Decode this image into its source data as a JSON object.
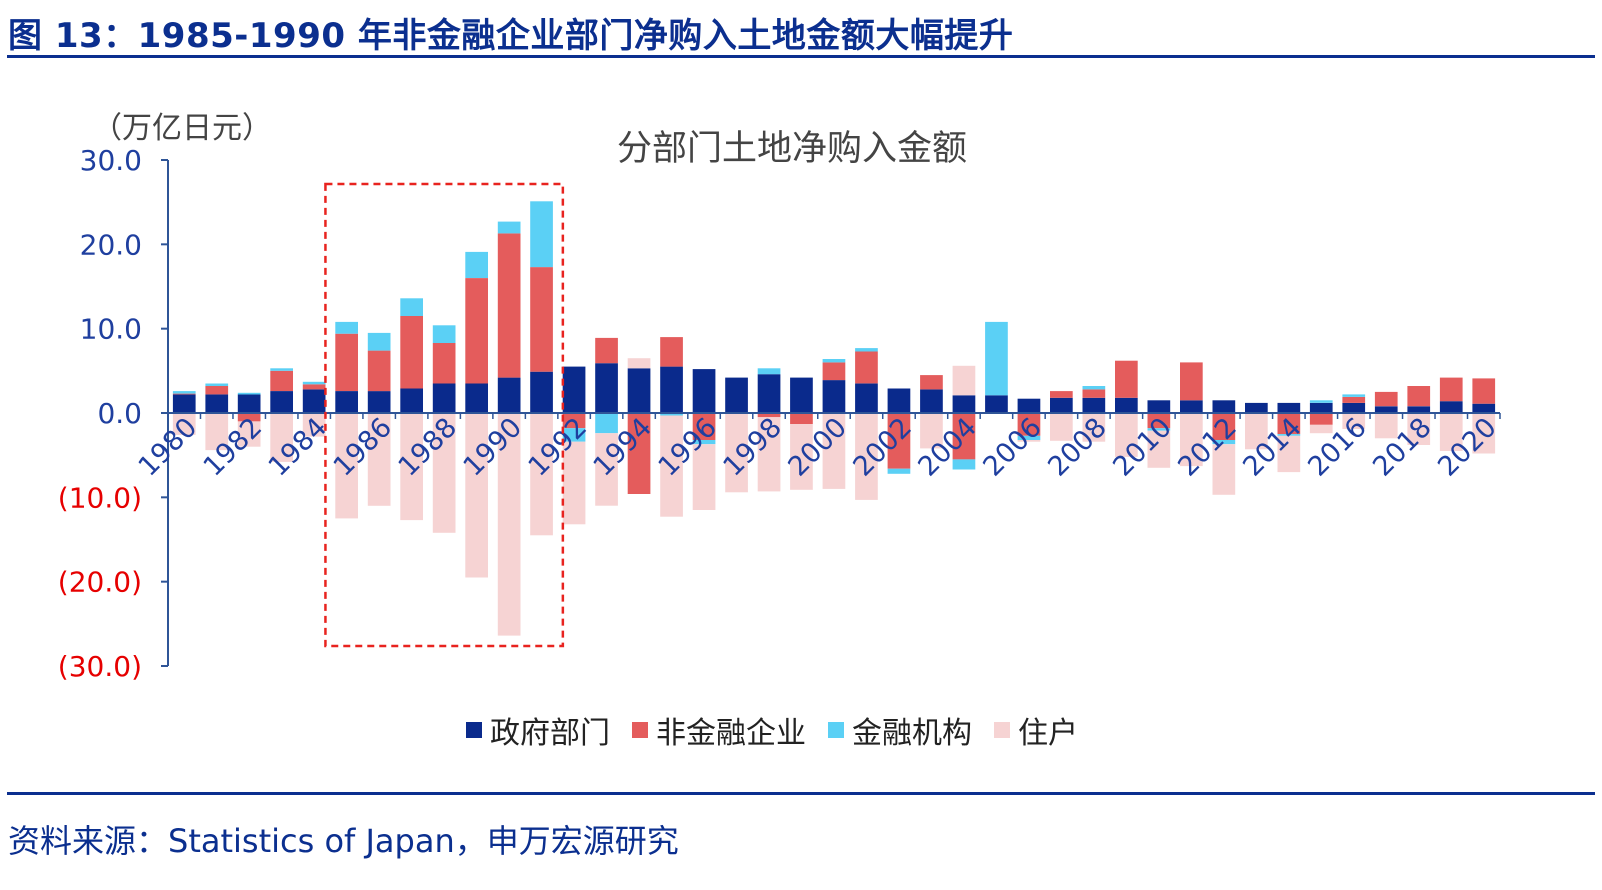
{
  "figure": {
    "title": "图 13：1985-1990 年非金融企业部门净购入土地金额大幅提升",
    "source": "资料来源：Statistics of Japan，申万宏源研究"
  },
  "colors": {
    "government": "#0a2a8c",
    "nonfinancial": "#e45c5c",
    "financial": "#5bd0f5",
    "household": "#f6d3d3",
    "axis": "#2f5597",
    "negative_tick": "#e60000",
    "positive_tick": "#1f3f9f",
    "highlight_box": "#e8231f"
  },
  "chart_data": {
    "type": "bar",
    "stacked": true,
    "title": "分部门土地净购入金额",
    "ylabel": "（万亿日元）",
    "xlabel": "",
    "ylim": [
      -30,
      30
    ],
    "yticks": [
      30,
      20,
      10,
      0,
      -10,
      -20,
      -30
    ],
    "ytick_labels": [
      "30.0",
      "20.0",
      "10.0",
      "0.0",
      "(10.0)",
      "(20.0)",
      "(30.0)"
    ],
    "grid": false,
    "legend_position": "bottom",
    "highlight_range": [
      "1985",
      "1992"
    ],
    "categories": [
      "1980",
      "1981",
      "1982",
      "1983",
      "1984",
      "1985",
      "1986",
      "1987",
      "1988",
      "1989",
      "1990",
      "1991",
      "1992",
      "1993",
      "1994",
      "1995",
      "1996",
      "1997",
      "1998",
      "1999",
      "2000",
      "2001",
      "2002",
      "2003",
      "2004",
      "2005",
      "2006",
      "2007",
      "2008",
      "2009",
      "2010",
      "2011",
      "2012",
      "2013",
      "2014",
      "2015",
      "2016",
      "2017",
      "2018",
      "2019",
      "2020"
    ],
    "xtick_labels": [
      "1980",
      "1982",
      "1984",
      "1986",
      "1988",
      "1990",
      "1992",
      "1994",
      "1996",
      "1998",
      "2000",
      "2002",
      "2004",
      "2006",
      "2008",
      "2010",
      "2012",
      "2014",
      "2016",
      "2018",
      "2020"
    ],
    "series": [
      {
        "name": "政府部门",
        "key": "government",
        "values": [
          2.2,
          2.2,
          2.2,
          2.6,
          2.8,
          2.6,
          2.6,
          2.9,
          3.5,
          3.5,
          4.2,
          4.9,
          5.5,
          5.9,
          5.3,
          5.5,
          5.2,
          4.2,
          4.6,
          4.2,
          3.9,
          3.5,
          2.9,
          2.8,
          2.1,
          2.1,
          1.7,
          1.8,
          1.8,
          1.8,
          1.5,
          1.5,
          1.5,
          1.2,
          1.2,
          1.2,
          1.2,
          0.8,
          0.8,
          1.4,
          1.1
        ]
      },
      {
        "name": "非金融企业",
        "key": "nonfinancial",
        "values": [
          0.1,
          1.0,
          -1.0,
          2.4,
          0.6,
          6.8,
          4.8,
          8.6,
          4.8,
          12.5,
          17.1,
          12.4,
          -1.8,
          3.0,
          -9.6,
          3.5,
          -3.2,
          0.0,
          -0.5,
          -1.3,
          2.1,
          3.8,
          -6.6,
          1.7,
          -5.5,
          0.0,
          -2.7,
          0.8,
          1.0,
          4.4,
          -1.8,
          4.5,
          -3.2,
          0.0,
          -2.5,
          -1.4,
          0.7,
          1.7,
          2.4,
          2.8,
          3.0
        ]
      },
      {
        "name": "金融机构",
        "key": "financial",
        "values": [
          0.3,
          0.3,
          0.2,
          0.3,
          0.3,
          1.4,
          2.1,
          2.1,
          2.1,
          3.1,
          1.4,
          7.8,
          -1.6,
          -2.4,
          0.0,
          -0.3,
          -0.5,
          0.0,
          0.7,
          0.0,
          0.4,
          0.4,
          -0.6,
          0.0,
          -1.2,
          8.7,
          -0.5,
          0.0,
          0.4,
          0.0,
          -0.3,
          0.0,
          -0.5,
          0.0,
          -0.2,
          0.3,
          0.3,
          0.0,
          0.0,
          0.0,
          0.0
        ]
      },
      {
        "name": "住户",
        "key": "household",
        "values": [
          -2.6,
          -4.4,
          -3.0,
          -5.8,
          -2.8,
          -12.5,
          -11.0,
          -12.7,
          -14.2,
          -19.5,
          -26.4,
          -14.5,
          -9.8,
          -8.6,
          1.2,
          -12.0,
          -7.8,
          -9.4,
          -8.8,
          -7.8,
          -9.0,
          -10.3,
          0.0,
          -4.2,
          3.5,
          0.0,
          -0.2,
          -3.3,
          -3.4,
          -5.2,
          -4.4,
          -6.3,
          -6.0,
          -4.3,
          -4.3,
          -1.0,
          -1.9,
          -3.0,
          -3.8,
          -4.5,
          -4.8
        ]
      }
    ]
  }
}
